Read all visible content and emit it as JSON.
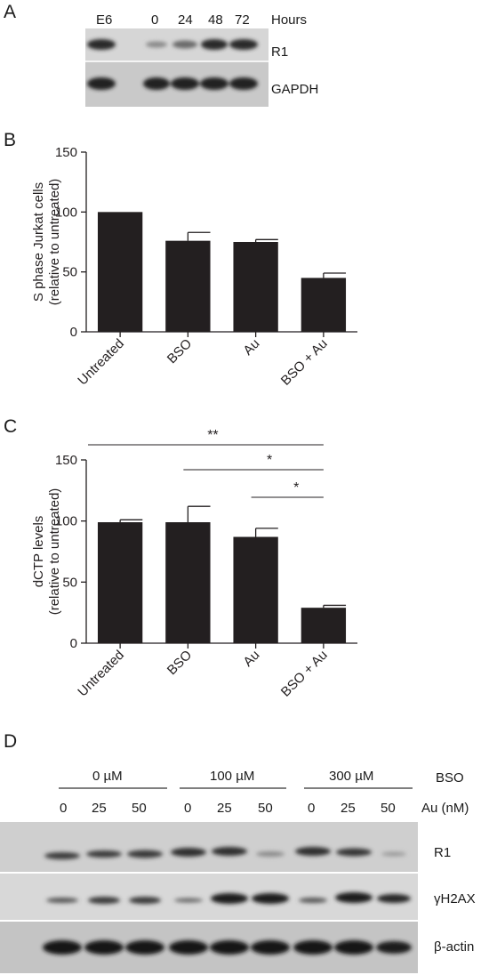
{
  "panels": {
    "a": {
      "label": "A"
    },
    "b": {
      "label": "B"
    },
    "c": {
      "label": "C"
    },
    "d": {
      "label": "D"
    }
  },
  "blot_a": {
    "lanes": [
      "E6",
      "0",
      "24",
      "48",
      "72"
    ],
    "time_label": "Hours",
    "rows": [
      "R1",
      "GAPDH"
    ]
  },
  "chart_data": [
    {
      "type": "bar",
      "panel": "B",
      "categories": [
        "Untreated",
        "BSO",
        "Au",
        "BSO + Au"
      ],
      "values": [
        100,
        76,
        75,
        45
      ],
      "errors": [
        0,
        7,
        2,
        4
      ],
      "ylabel_line1": "S phase Jurkat cells",
      "ylabel_line2": "(relative to untreated)",
      "ylim": [
        0,
        150
      ],
      "yticks": [
        "0",
        "50",
        "100",
        "150"
      ],
      "bar_color": "#231f20"
    },
    {
      "type": "bar",
      "panel": "C",
      "categories": [
        "Untreated",
        "BSO",
        "Au",
        "BSO + Au"
      ],
      "values": [
        99,
        99,
        87,
        29
      ],
      "errors": [
        2,
        13,
        7,
        2
      ],
      "ylabel_line1": "dCTP levels",
      "ylabel_line2": "(relative to untreated)",
      "ylim": [
        0,
        150
      ],
      "yticks": [
        "0",
        "50",
        "100",
        "150"
      ],
      "bar_color": "#231f20",
      "significance": [
        {
          "from": "Untreated",
          "to": "BSO + Au",
          "label": "**"
        },
        {
          "from": "BSO",
          "to": "BSO + Au",
          "label": "*"
        },
        {
          "from": "Au",
          "to": "BSO + Au",
          "label": "*"
        }
      ]
    }
  ],
  "blot_d": {
    "bso_groups": [
      "0 µM",
      "100 µM",
      "300 µM"
    ],
    "bso_label": "BSO",
    "au_doses": [
      "0",
      "25",
      "50",
      "0",
      "25",
      "50",
      "0",
      "25",
      "50"
    ],
    "au_label": "Au (nM)",
    "rows": [
      "R1",
      "γH2AX",
      "β-actin"
    ]
  }
}
